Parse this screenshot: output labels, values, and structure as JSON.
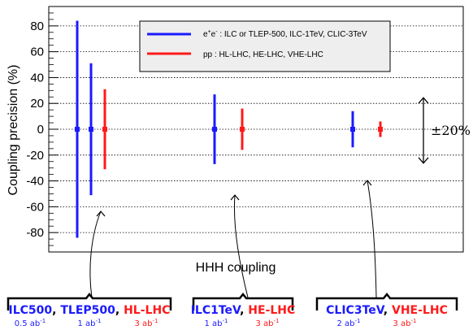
{
  "colors": {
    "ee": "#1a1aff",
    "pp": "#ff1a1a",
    "black": "#000000"
  },
  "chart_data": {
    "type": "errorbar",
    "xlabel": "HHH coupling",
    "ylabel": "Coupling precision (%)",
    "ylim": [
      -95,
      95
    ],
    "yticks": [
      -80,
      -60,
      -40,
      -20,
      0,
      20,
      40,
      60,
      80
    ],
    "grid": true,
    "legend_placement": "top-right",
    "legend": [
      {
        "key": "ee",
        "label_prefix": "e",
        "label_sup1": "+",
        "label_mid": "e",
        "label_sup2": "-",
        "label_rest": " : ILC or TLEP-500, ILC-1TeV, CLIC-3TeV"
      },
      {
        "key": "pp",
        "label": "pp : HL-LHC, HE-LHC, VHE-LHC"
      }
    ],
    "series": [
      {
        "group": 0,
        "color": "ee",
        "value": 0,
        "error": 84
      },
      {
        "group": 0,
        "color": "ee",
        "value": 0,
        "error": 51
      },
      {
        "group": 0,
        "color": "pp",
        "value": 0,
        "error": 31
      },
      {
        "group": 1,
        "color": "ee",
        "value": 0,
        "error": 27
      },
      {
        "group": 1,
        "color": "pp",
        "value": 0,
        "error": 16
      },
      {
        "group": 2,
        "color": "ee",
        "value": 0,
        "error": 14
      },
      {
        "group": 2,
        "color": "pp",
        "value": 0,
        "error": 6
      }
    ],
    "annotation_band": {
      "label": "±20%",
      "half_width": 20
    }
  },
  "groups": [
    {
      "labels": [
        {
          "text": "ILC500",
          "color": "ee"
        },
        {
          "text": ", ",
          "color": "black"
        },
        {
          "text": "TLEP500",
          "color": "ee"
        },
        {
          "text": ", ",
          "color": "black"
        },
        {
          "text": "HL-LHC",
          "color": "pp"
        }
      ],
      "lumis": [
        {
          "base": "0.5 ab",
          "sup": "-1",
          "color": "ee"
        },
        {
          "base": "1 ab",
          "sup": "-1",
          "color": "ee"
        },
        {
          "base": "3 ab",
          "sup": "-1",
          "color": "pp"
        }
      ]
    },
    {
      "labels": [
        {
          "text": "ILC1TeV",
          "color": "ee"
        },
        {
          "text": ", ",
          "color": "black"
        },
        {
          "text": "HE-LHC",
          "color": "pp"
        }
      ],
      "lumis": [
        {
          "base": "1 ab",
          "sup": "-1",
          "color": "ee"
        },
        {
          "base": "3 ab",
          "sup": "-1",
          "color": "pp"
        }
      ]
    },
    {
      "labels": [
        {
          "text": "CLIC3TeV",
          "color": "ee"
        },
        {
          "text": ", ",
          "color": "black"
        },
        {
          "text": "VHE-LHC",
          "color": "pp"
        }
      ],
      "lumis": [
        {
          "base": "2 ab",
          "sup": "-1",
          "color": "ee"
        },
        {
          "base": "3 ab",
          "sup": "-1",
          "color": "pp"
        }
      ]
    }
  ]
}
